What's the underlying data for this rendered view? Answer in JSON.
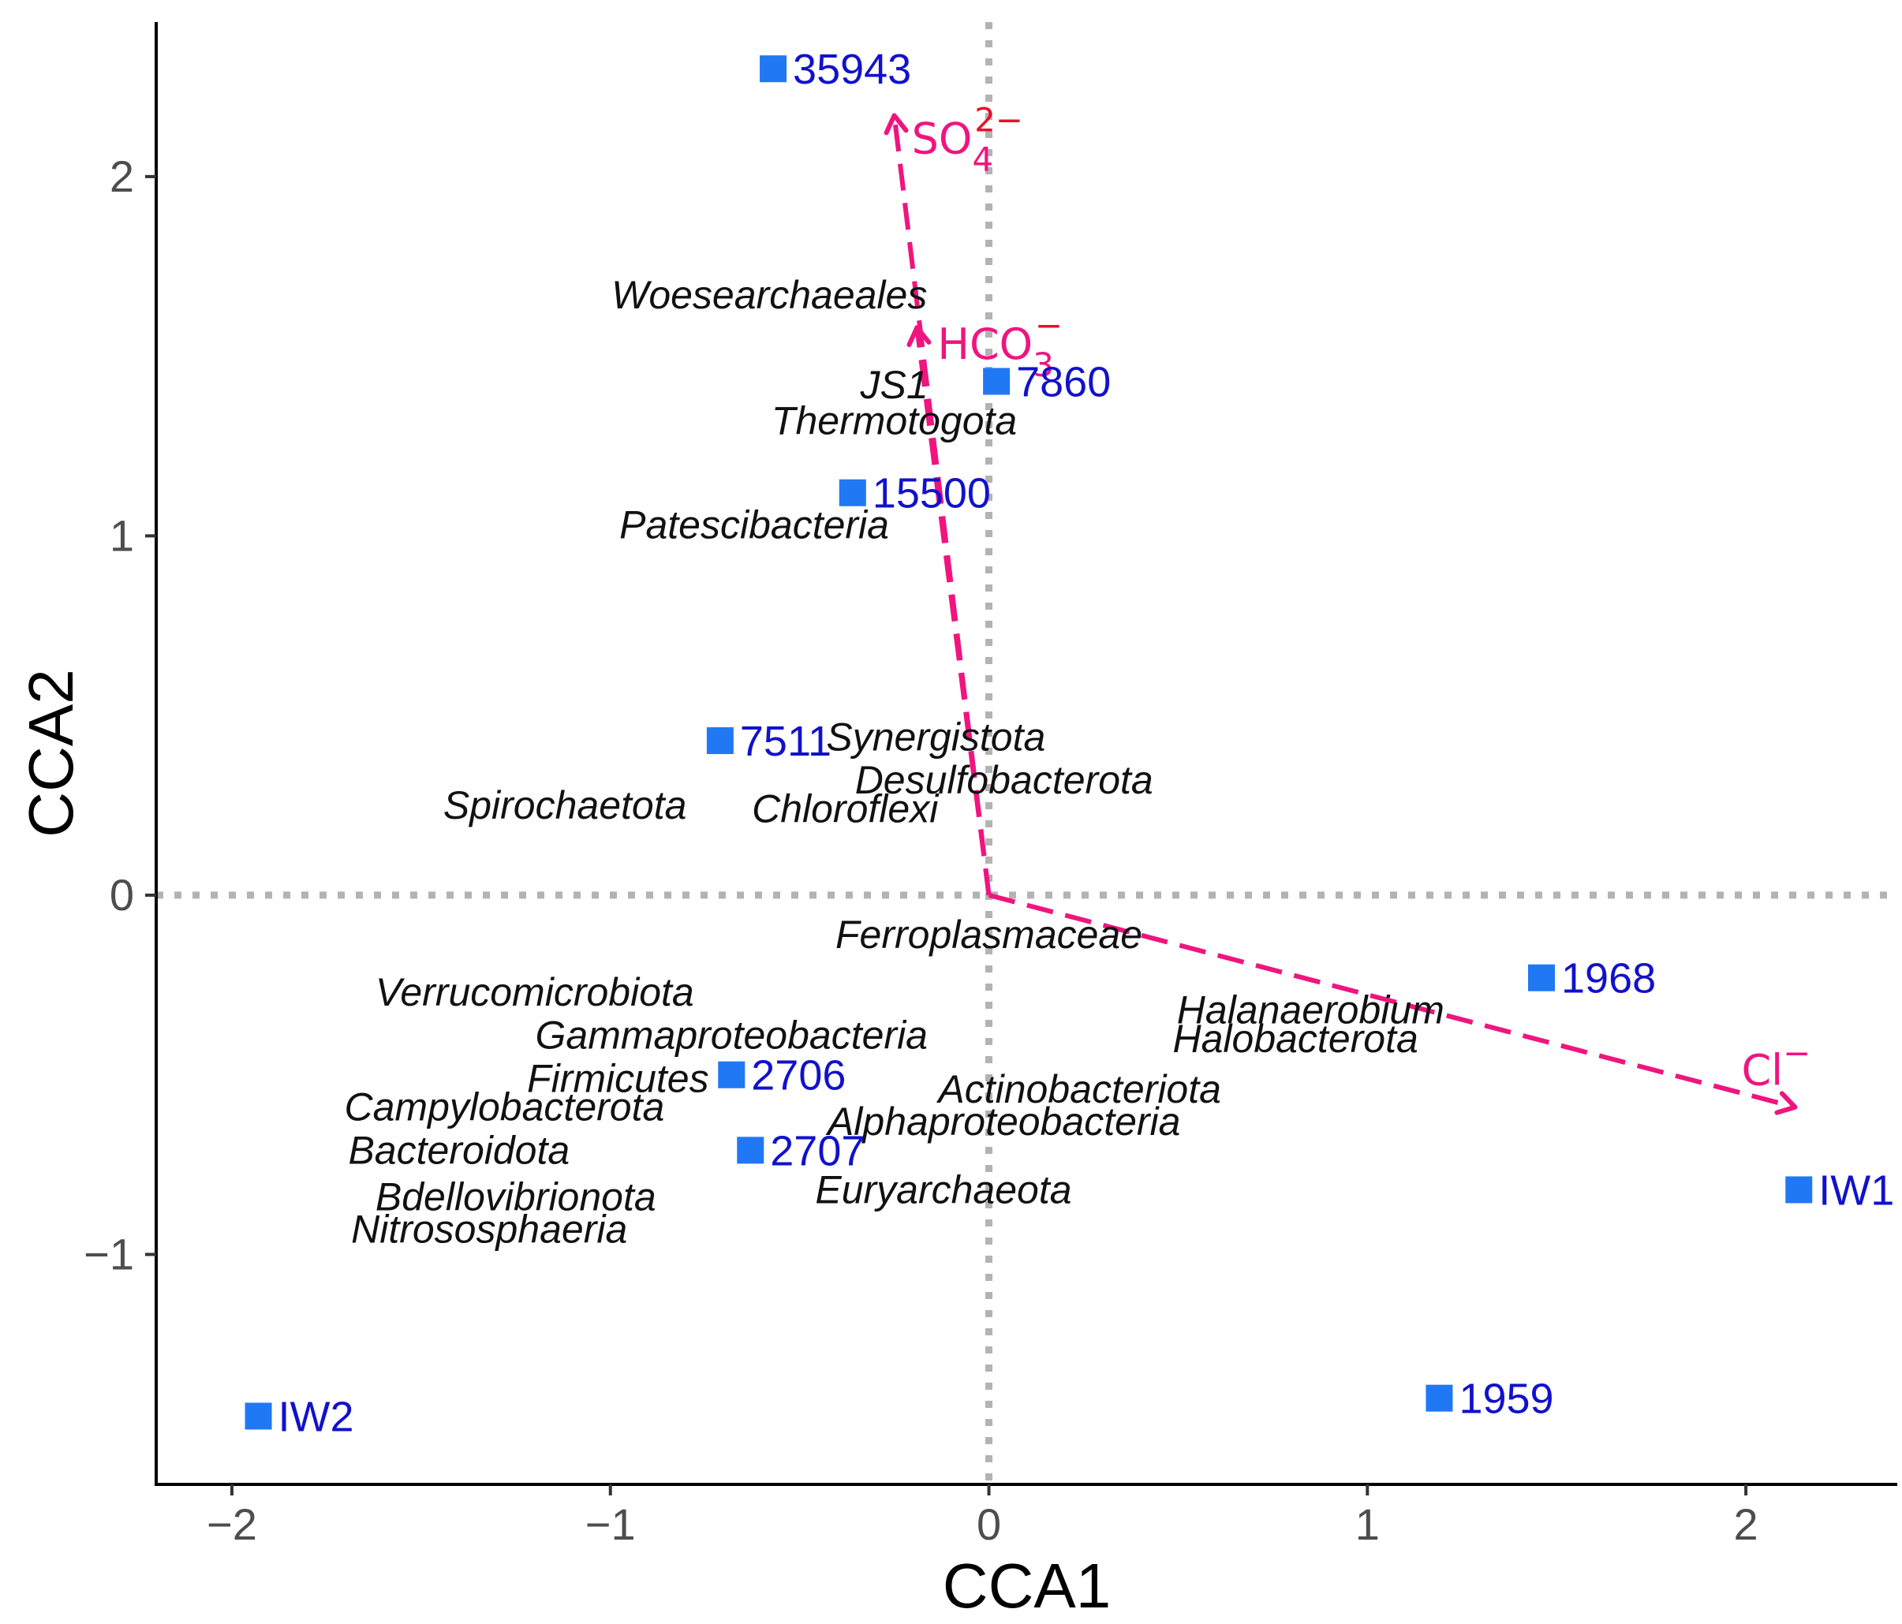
{
  "chart_data": {
    "type": "scatter",
    "xlabel": "CCA1",
    "ylabel": "CCA2",
    "xlim": [
      -2.2,
      2.4
    ],
    "ylim": [
      -1.64,
      2.43
    ],
    "x_ticks": [
      -2,
      -1,
      0,
      1,
      2
    ],
    "y_ticks": [
      -1,
      0,
      1,
      2
    ],
    "x_tick_labels": [
      "−2",
      "−1",
      "0",
      "1",
      "2"
    ],
    "y_tick_labels": [
      "−1",
      "0",
      "1",
      "2"
    ],
    "grid": false,
    "reference_lines": {
      "x": 0,
      "y": 0,
      "style": "dotted"
    },
    "sites": {
      "color": "#2178f5",
      "label_color": "#1111cc",
      "points": [
        {
          "label": "35943",
          "x": -0.57,
          "y": 2.3
        },
        {
          "label": "7860",
          "x": 0.02,
          "y": 1.43
        },
        {
          "label": "15500",
          "x": -0.36,
          "y": 1.12
        },
        {
          "label": "7511",
          "x": -0.71,
          "y": 0.43
        },
        {
          "label": "1968",
          "x": 1.46,
          "y": -0.23
        },
        {
          "label": "2706",
          "x": -0.68,
          "y": -0.5
        },
        {
          "label": "2707",
          "x": -0.63,
          "y": -0.71
        },
        {
          "label": "IW1",
          "x": 2.14,
          "y": -0.82
        },
        {
          "label": "1959",
          "x": 1.19,
          "y": -1.4
        },
        {
          "label": "IW2",
          "x": -1.93,
          "y": -1.45
        }
      ]
    },
    "taxa": [
      {
        "label": "Woesearchaeales",
        "x": -0.58,
        "y": 1.67
      },
      {
        "label": "JS1",
        "x": -0.25,
        "y": 1.42
      },
      {
        "label": "Thermotogota",
        "x": -0.25,
        "y": 1.32
      },
      {
        "label": "Patescibacteria",
        "x": -0.62,
        "y": 1.03
      },
      {
        "label": "Synergistota",
        "x": -0.14,
        "y": 0.44
      },
      {
        "label": "Desulfobacterota",
        "x": 0.04,
        "y": 0.32
      },
      {
        "label": "Spirochaetota",
        "x": -1.12,
        "y": 0.25
      },
      {
        "label": "Chloroflexi",
        "x": -0.38,
        "y": 0.24
      },
      {
        "label": "Ferroplasmaceae",
        "x": 0.0,
        "y": -0.11
      },
      {
        "label": "Verrucomicrobiota",
        "x": -1.2,
        "y": -0.27
      },
      {
        "label": "Gammaproteobacteria",
        "x": -0.68,
        "y": -0.39
      },
      {
        "label": "Halanaerobium",
        "x": 0.85,
        "y": -0.32
      },
      {
        "label": "Halobacterota",
        "x": 0.81,
        "y": -0.4
      },
      {
        "label": "Firmicutes",
        "x": -0.98,
        "y": -0.51
      },
      {
        "label": "Actinobacteriota",
        "x": 0.24,
        "y": -0.54
      },
      {
        "label": "Campylobacterota",
        "x": -1.28,
        "y": -0.59
      },
      {
        "label": "Alphaproteobacteria",
        "x": 0.04,
        "y": -0.63
      },
      {
        "label": "Bacteroidota",
        "x": -1.4,
        "y": -0.71
      },
      {
        "label": "Euryarchaeota",
        "x": -0.12,
        "y": -0.82
      },
      {
        "label": "Bdellovibrionota",
        "x": -1.25,
        "y": -0.84
      },
      {
        "label": "Nitrososphaeria",
        "x": -1.32,
        "y": -0.93
      }
    ],
    "env_vectors": {
      "color": "#f0147f",
      "label_color": "#e8102a",
      "vectors": [
        {
          "label": "SO",
          "sub": "4",
          "sup": "2−",
          "x": -0.25,
          "y": 2.17
        },
        {
          "label": "HCO",
          "sub": "3",
          "sup": "−",
          "x": -0.19,
          "y": 1.58
        },
        {
          "label": "Cl",
          "sub": "",
          "sup": "−",
          "x": 2.13,
          "y": -0.59
        }
      ]
    }
  }
}
